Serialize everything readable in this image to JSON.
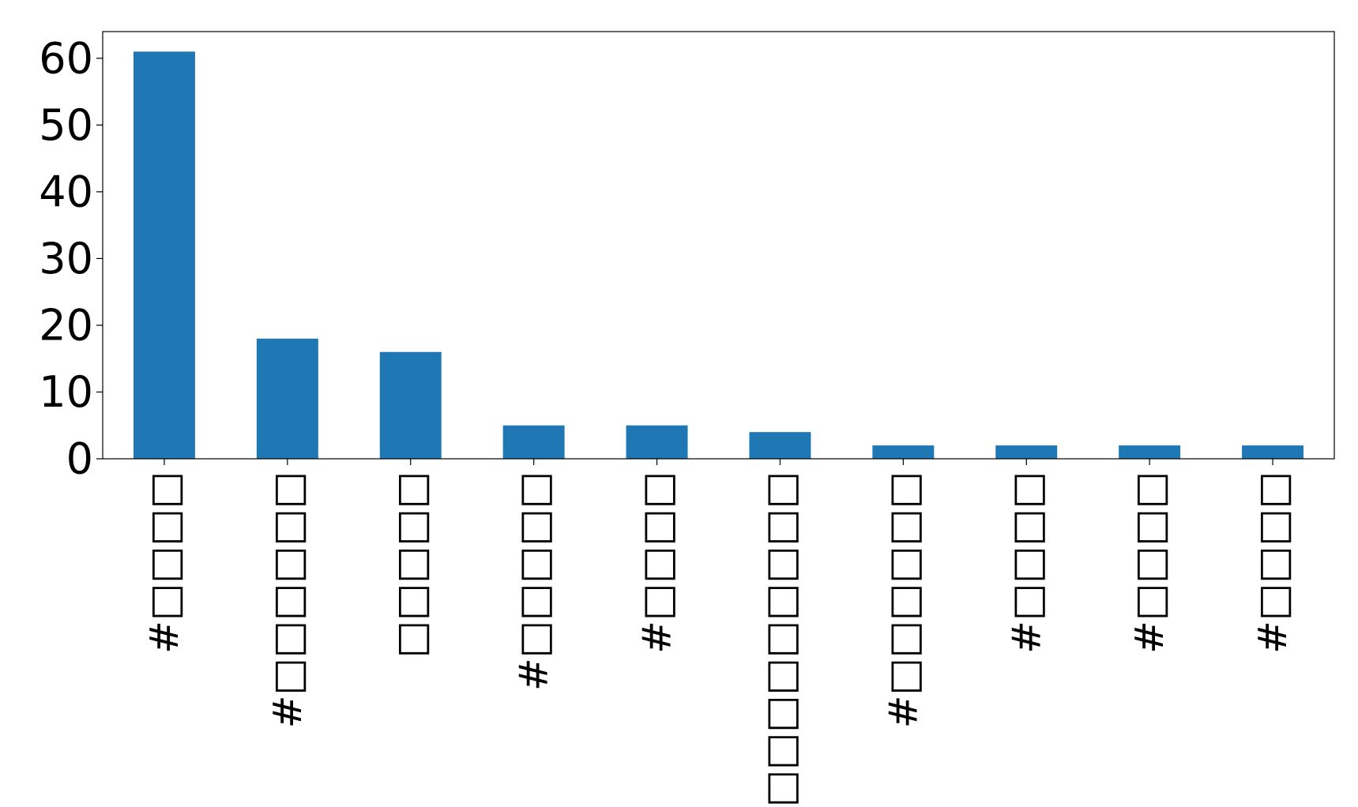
{
  "chart_data": {
    "type": "bar",
    "title": "",
    "xlabel": "",
    "ylabel": "",
    "categories": [
      "#□□□□",
      "#□□□□□□",
      "□□□□□",
      "#□□□□□",
      "#□□□□",
      "#□□□□□□□□□",
      "#□□□□□□",
      "#□□□□",
      "#□□□□",
      "#□□□□"
    ],
    "values": [
      61,
      18,
      16,
      5,
      5,
      4,
      2,
      2,
      2,
      2
    ],
    "ylim": [
      0,
      64
    ],
    "yticks": [
      0,
      10,
      20,
      30,
      40,
      50,
      60
    ],
    "ytick_labels": [
      "0",
      "10",
      "20",
      "30",
      "40",
      "50",
      "60"
    ],
    "grid": false,
    "legend": "none",
    "colors": {
      "bar": "#1f77b4",
      "axis": "#000000",
      "background": "#ffffff"
    }
  }
}
